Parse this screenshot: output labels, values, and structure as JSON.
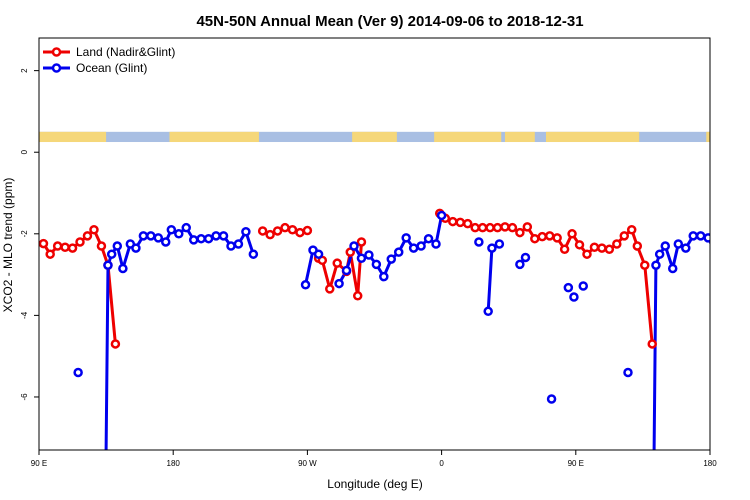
{
  "chart_data": {
    "type": "line",
    "title": "45N-50N Annual Mean (Ver 9)   2014-09-06 to 2018-12-31",
    "xlabel": "Longitude (deg E)",
    "ylabel": "XCO2 - MLO trend (ppm)",
    "xlim": [
      90,
      450
    ],
    "ylim": [
      -7.3,
      2.8
    ],
    "x_ticks": [
      {
        "value": 90,
        "label": "90 E"
      },
      {
        "value": 162,
        "label": "180"
      },
      {
        "value": 234,
        "label": "90 W"
      },
      {
        "value": 306,
        "label": "0"
      },
      {
        "value": 378,
        "label": "90 E"
      },
      {
        "value": 450,
        "label": "180"
      }
    ],
    "y_ticks": [
      {
        "value": 2,
        "label": "2"
      },
      {
        "value": 0,
        "label": "0"
      },
      {
        "value": -2,
        "label": "-2"
      },
      {
        "value": -4,
        "label": "-4"
      },
      {
        "value": -6,
        "label": "-6"
      }
    ],
    "grid": false,
    "legend_position": "top-left",
    "map_strip": {
      "y_top": 0.5,
      "y_bottom": 0.25,
      "land_color": "#f5d77a",
      "ocean_color": "#a9bfe3"
    },
    "series": [
      {
        "name": "Land (Nadir&Glint)",
        "color": "#ee0000",
        "segments": [
          [
            [
              92.4,
              -2.24
            ],
            [
              96,
              -2.5
            ],
            [
              100,
              -2.3
            ],
            [
              104,
              -2.33
            ],
            [
              108,
              -2.35
            ],
            [
              112,
              -2.2
            ],
            [
              116,
              -2.05
            ],
            [
              119.5,
              -1.9
            ],
            [
              123.5,
              -2.3
            ],
            [
              127,
              -2.77
            ],
            [
              131,
              -4.7
            ]
          ],
          [
            [
              210,
              -1.93
            ],
            [
              214,
              -2.02
            ],
            [
              218,
              -1.93
            ],
            [
              222,
              -1.85
            ],
            [
              226,
              -1.9
            ],
            [
              230,
              -1.97
            ],
            [
              234,
              -1.92
            ]
          ],
          [
            [
              240,
              -2.6
            ],
            [
              242,
              -2.65
            ],
            [
              246,
              -3.35
            ],
            [
              250,
              -2.72
            ],
            [
              255,
              -2.92
            ],
            [
              257,
              -2.45
            ],
            [
              261,
              -3.52
            ],
            [
              263,
              -2.2
            ]
          ],
          [
            [
              305,
              -1.5
            ],
            [
              308,
              -1.62
            ],
            [
              312,
              -1.7
            ],
            [
              316,
              -1.72
            ],
            [
              320,
              -1.75
            ],
            [
              324,
              -1.85
            ],
            [
              328,
              -1.85
            ],
            [
              332,
              -1.85
            ],
            [
              336,
              -1.85
            ],
            [
              340,
              -1.83
            ],
            [
              344,
              -1.85
            ],
            [
              348,
              -1.97
            ],
            [
              352,
              -1.83
            ],
            [
              356,
              -2.12
            ],
            [
              360,
              -2.07
            ],
            [
              364,
              -2.05
            ],
            [
              368,
              -2.1
            ],
            [
              372,
              -2.38
            ],
            [
              376,
              -2.0
            ],
            [
              380,
              -2.27
            ],
            [
              384,
              -2.5
            ],
            [
              388,
              -2.33
            ],
            [
              392,
              -2.35
            ],
            [
              396,
              -2.38
            ],
            [
              400,
              -2.25
            ],
            [
              404,
              -2.05
            ],
            [
              408,
              -1.9
            ],
            [
              411,
              -2.3
            ],
            [
              415,
              -2.77
            ],
            [
              419,
              -4.7
            ]
          ]
        ]
      },
      {
        "name": "Ocean (Glint)",
        "color": "#0000ee",
        "segments": [
          [
            [
              126,
              -7.3
            ],
            [
              127,
              -2.77
            ],
            [
              129,
              -2.5
            ],
            [
              132,
              -2.3
            ],
            [
              135,
              -2.85
            ],
            [
              139,
              -2.25
            ],
            [
              142,
              -2.35
            ],
            [
              146,
              -2.05
            ],
            [
              150,
              -2.05
            ],
            [
              154,
              -2.1
            ],
            [
              158,
              -2.2
            ],
            [
              161,
              -1.9
            ],
            [
              165,
              -2.0
            ],
            [
              169,
              -1.85
            ],
            [
              173,
              -2.15
            ],
            [
              177,
              -2.12
            ],
            [
              181,
              -2.12
            ],
            [
              185,
              -2.05
            ],
            [
              189,
              -2.05
            ],
            [
              193,
              -2.3
            ],
            [
              197,
              -2.25
            ],
            [
              201,
              -1.95
            ],
            [
              205,
              -2.5
            ]
          ],
          [
            [
              233,
              -3.25
            ],
            [
              237,
              -2.4
            ],
            [
              240,
              -2.5
            ]
          ],
          [
            [
              251,
              -3.22
            ],
            [
              255,
              -2.9
            ],
            [
              259,
              -2.3
            ],
            [
              263,
              -2.6
            ],
            [
              267,
              -2.52
            ],
            [
              271,
              -2.75
            ],
            [
              275,
              -3.05
            ],
            [
              279,
              -2.62
            ],
            [
              283,
              -2.45
            ],
            [
              287,
              -2.1
            ],
            [
              291,
              -2.35
            ],
            [
              295,
              -2.3
            ],
            [
              299,
              -2.12
            ],
            [
              303,
              -2.25
            ],
            [
              306,
              -1.55
            ]
          ],
          [
            [
              331,
              -3.9
            ],
            [
              333,
              -2.35
            ],
            [
              337,
              -2.25
            ]
          ],
          [
            [
              348,
              -2.75
            ],
            [
              351,
              -2.58
            ]
          ],
          [
            [
              420,
              -7.3
            ],
            [
              421,
              -2.77
            ],
            [
              423,
              -2.5
            ],
            [
              426,
              -2.3
            ],
            [
              430,
              -2.85
            ],
            [
              433,
              -2.25
            ],
            [
              437,
              -2.35
            ],
            [
              441,
              -2.05
            ],
            [
              445,
              -2.05
            ],
            [
              449,
              -2.1
            ],
            [
              452,
              -2.2
            ]
          ]
        ],
        "points": [
          [
            111,
            -5.4
          ],
          [
            326,
            -2.2
          ],
          [
            365,
            -6.05
          ],
          [
            374,
            -3.32
          ],
          [
            377,
            -3.55
          ],
          [
            382,
            -3.28
          ],
          [
            406,
            -5.4
          ]
        ]
      }
    ]
  }
}
